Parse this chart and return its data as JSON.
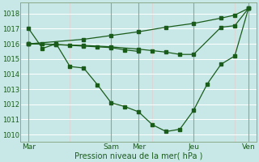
{
  "bg_color": "#c8e8e8",
  "grid_color_major": "#b0c8c8",
  "grid_color_minor": "#d8ecec",
  "line_color": "#1a5c1a",
  "ylim": [
    1009.5,
    1018.75
  ],
  "yticks": [
    1010,
    1011,
    1012,
    1013,
    1014,
    1015,
    1016,
    1017,
    1018
  ],
  "xtick_labels": [
    "Mar",
    "Sam",
    "Mer",
    "Jeu",
    "Ven"
  ],
  "xtick_positions": [
    0,
    3,
    4,
    6,
    8
  ],
  "vline_positions": [
    0,
    3,
    4,
    6,
    8
  ],
  "xlabel": "Pression niveau de la mer( hPa )",
  "series_main": {
    "x": [
      0,
      0.5,
      1.0,
      1.5,
      2.0,
      2.5,
      3.0,
      3.5,
      4.0,
      4.5,
      5.0,
      5.5,
      6.0,
      6.5,
      7.0,
      7.5,
      8.0
    ],
    "y": [
      1017.0,
      1015.7,
      1016.0,
      1014.5,
      1014.4,
      1013.3,
      1012.1,
      1011.85,
      1011.5,
      1010.65,
      1010.2,
      1010.35,
      1011.6,
      1013.35,
      1014.65,
      1015.2,
      1018.35
    ]
  },
  "series_top": {
    "x": [
      0,
      2.0,
      3.0,
      4.0,
      5.0,
      6.0,
      7.0,
      7.5,
      8.0
    ],
    "y": [
      1016.0,
      1016.3,
      1016.55,
      1016.8,
      1017.1,
      1017.35,
      1017.7,
      1017.9,
      1018.35
    ]
  },
  "series_mid1": {
    "x": [
      0,
      1.0,
      2.0,
      3.0,
      4.0,
      4.5,
      5.0,
      5.5,
      6.0,
      7.0,
      7.5,
      8.0
    ],
    "y": [
      1016.0,
      1015.95,
      1015.9,
      1015.8,
      1015.65,
      1015.55,
      1015.45,
      1015.3,
      1015.3,
      1017.1,
      1017.2,
      1018.35
    ]
  },
  "series_mid2": {
    "x": [
      0,
      0.5,
      1.0,
      1.5,
      2.0,
      2.5,
      3.0,
      3.5,
      4.0
    ],
    "y": [
      1016.0,
      1016.0,
      1015.95,
      1015.9,
      1015.85,
      1015.8,
      1015.75,
      1015.6,
      1015.5
    ]
  }
}
